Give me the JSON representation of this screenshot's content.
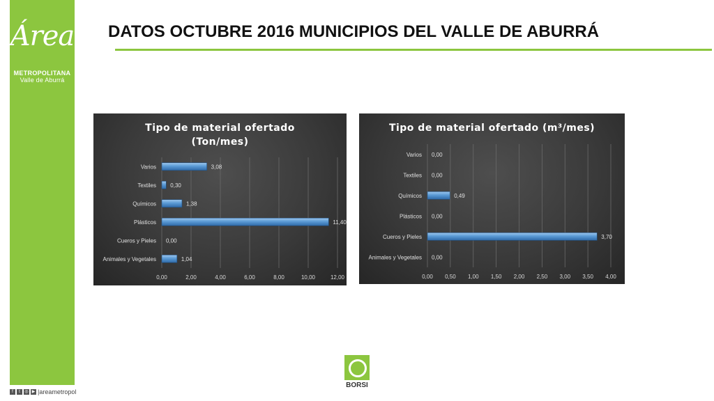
{
  "page_title": "DATOS OCTUBRE 2016 MUNICIPIOS DEL VALLE DE ABURRÁ",
  "logo": {
    "script": "Área",
    "line1": "METROPOLITANA",
    "line2": "Valle de Aburrá"
  },
  "footer": {
    "social_text": "|areametropol"
  },
  "borsi_label": "BORSI",
  "colors": {
    "sidebar": "#8cc63f",
    "bar": "#5b9bd5",
    "chart_bg": "#3a3a3a"
  },
  "chart_data": [
    {
      "type": "bar",
      "orientation": "horizontal",
      "title_lines": [
        "Tipo de material ofertado",
        "(Ton/mes)"
      ],
      "categories": [
        "Animales y Vegetales",
        "Cueros y Pieles",
        "Plásticos",
        "Químicos",
        "Textiles",
        "Varios"
      ],
      "values": [
        1.04,
        0.0,
        11.4,
        1.38,
        0.3,
        3.08
      ],
      "value_labels": [
        "1,04",
        "0,00",
        "11,40",
        "1,38",
        "0,30",
        "3,08"
      ],
      "xlim": [
        0,
        12
      ],
      "ticks": [
        0,
        2,
        4,
        6,
        8,
        10,
        12
      ],
      "tick_labels": [
        "0,00",
        "2,00",
        "4,00",
        "6,00",
        "8,00",
        "10,00",
        "12,00"
      ],
      "grid": true
    },
    {
      "type": "bar",
      "orientation": "horizontal",
      "title_lines": [
        "Tipo de material ofertado (m³/mes)"
      ],
      "categories": [
        "Animales y Vegetales",
        "Cueros y Pieles",
        "Plásticos",
        "Químicos",
        "Textiles",
        "Varios"
      ],
      "values": [
        0.0,
        3.7,
        0.0,
        0.49,
        0.0,
        0.0
      ],
      "value_labels": [
        "0,00",
        "3,70",
        "0,00",
        "0,49",
        "0,00",
        "0,00"
      ],
      "xlim": [
        0,
        4
      ],
      "ticks": [
        0,
        0.5,
        1,
        1.5,
        2,
        2.5,
        3,
        3.5,
        4
      ],
      "tick_labels": [
        "0,00",
        "0,50",
        "1,00",
        "1,50",
        "2,00",
        "2,50",
        "3,00",
        "3,50",
        "4,00"
      ],
      "grid": true
    }
  ]
}
